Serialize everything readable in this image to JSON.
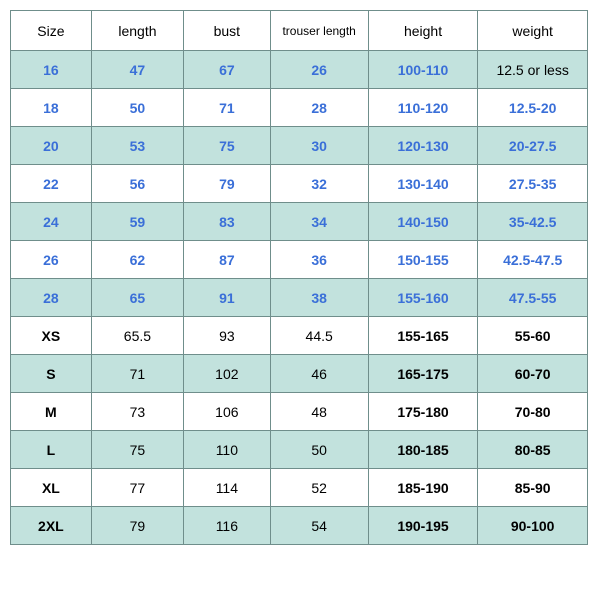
{
  "table": {
    "type": "table",
    "background_teal": "#c2e2dd",
    "background_white": "#ffffff",
    "border_color": "#6f8e8b",
    "blue_text_color": "#3a6fd8",
    "black_text_color": "#000000",
    "header_fontsize": 14,
    "cell_fontsize": 14,
    "columns": [
      {
        "label": "Size",
        "width_pct": 14
      },
      {
        "label": "length",
        "width_pct": 16
      },
      {
        "label": "bust",
        "width_pct": 15
      },
      {
        "label": "trouser length",
        "width_pct": 17,
        "small": true
      },
      {
        "label": "height",
        "width_pct": 19
      },
      {
        "label": "weight",
        "width_pct": 19
      }
    ],
    "rows": [
      {
        "bg": "teal",
        "cells": [
          {
            "v": "16",
            "style": "blue"
          },
          {
            "v": "47",
            "style": "blue"
          },
          {
            "v": "67",
            "style": "blue"
          },
          {
            "v": "26",
            "style": "blue"
          },
          {
            "v": "100-110",
            "style": "blue"
          },
          {
            "v": "12.5 or less",
            "style": "black-plain"
          }
        ]
      },
      {
        "bg": "white",
        "cells": [
          {
            "v": "18",
            "style": "blue"
          },
          {
            "v": "50",
            "style": "blue"
          },
          {
            "v": "71",
            "style": "blue"
          },
          {
            "v": "28",
            "style": "blue"
          },
          {
            "v": "110-120",
            "style": "blue"
          },
          {
            "v": "12.5-20",
            "style": "blue"
          }
        ]
      },
      {
        "bg": "teal",
        "cells": [
          {
            "v": "20",
            "style": "blue"
          },
          {
            "v": "53",
            "style": "blue"
          },
          {
            "v": "75",
            "style": "blue"
          },
          {
            "v": "30",
            "style": "blue"
          },
          {
            "v": "120-130",
            "style": "blue"
          },
          {
            "v": "20-27.5",
            "style": "blue"
          }
        ]
      },
      {
        "bg": "white",
        "cells": [
          {
            "v": "22",
            "style": "blue"
          },
          {
            "v": "56",
            "style": "blue"
          },
          {
            "v": "79",
            "style": "blue"
          },
          {
            "v": "32",
            "style": "blue"
          },
          {
            "v": "130-140",
            "style": "blue"
          },
          {
            "v": "27.5-35",
            "style": "blue"
          }
        ]
      },
      {
        "bg": "teal",
        "cells": [
          {
            "v": "24",
            "style": "blue"
          },
          {
            "v": "59",
            "style": "blue"
          },
          {
            "v": "83",
            "style": "blue"
          },
          {
            "v": "34",
            "style": "blue"
          },
          {
            "v": "140-150",
            "style": "blue"
          },
          {
            "v": "35-42.5",
            "style": "blue"
          }
        ]
      },
      {
        "bg": "white",
        "cells": [
          {
            "v": "26",
            "style": "blue"
          },
          {
            "v": "62",
            "style": "blue"
          },
          {
            "v": "87",
            "style": "blue"
          },
          {
            "v": "36",
            "style": "blue"
          },
          {
            "v": "150-155",
            "style": "blue"
          },
          {
            "v": "42.5-47.5",
            "style": "blue"
          }
        ]
      },
      {
        "bg": "teal",
        "cells": [
          {
            "v": "28",
            "style": "blue"
          },
          {
            "v": "65",
            "style": "blue"
          },
          {
            "v": "91",
            "style": "blue"
          },
          {
            "v": "38",
            "style": "blue"
          },
          {
            "v": "155-160",
            "style": "blue"
          },
          {
            "v": "47.5-55",
            "style": "blue"
          }
        ]
      },
      {
        "bg": "white",
        "cells": [
          {
            "v": "XS",
            "style": "black-bold"
          },
          {
            "v": "65.5",
            "style": "black-plain"
          },
          {
            "v": "93",
            "style": "black-plain"
          },
          {
            "v": "44.5",
            "style": "black-plain"
          },
          {
            "v": "155-165",
            "style": "black-bold"
          },
          {
            "v": "55-60",
            "style": "black-bold"
          }
        ]
      },
      {
        "bg": "teal",
        "cells": [
          {
            "v": "S",
            "style": "black-bold"
          },
          {
            "v": "71",
            "style": "black-plain"
          },
          {
            "v": "102",
            "style": "black-plain"
          },
          {
            "v": "46",
            "style": "black-plain"
          },
          {
            "v": "165-175",
            "style": "black-bold"
          },
          {
            "v": "60-70",
            "style": "black-bold"
          }
        ]
      },
      {
        "bg": "white",
        "cells": [
          {
            "v": "M",
            "style": "black-bold"
          },
          {
            "v": "73",
            "style": "black-plain"
          },
          {
            "v": "106",
            "style": "black-plain"
          },
          {
            "v": "48",
            "style": "black-plain"
          },
          {
            "v": "175-180",
            "style": "black-bold"
          },
          {
            "v": "70-80",
            "style": "black-bold"
          }
        ]
      },
      {
        "bg": "teal",
        "cells": [
          {
            "v": "L",
            "style": "black-bold"
          },
          {
            "v": "75",
            "style": "black-plain"
          },
          {
            "v": "110",
            "style": "black-plain"
          },
          {
            "v": "50",
            "style": "black-plain"
          },
          {
            "v": "180-185",
            "style": "black-bold"
          },
          {
            "v": "80-85",
            "style": "black-bold"
          }
        ]
      },
      {
        "bg": "white",
        "cells": [
          {
            "v": "XL",
            "style": "black-bold"
          },
          {
            "v": "77",
            "style": "black-plain"
          },
          {
            "v": "114",
            "style": "black-plain"
          },
          {
            "v": "52",
            "style": "black-plain"
          },
          {
            "v": "185-190",
            "style": "black-bold"
          },
          {
            "v": "85-90",
            "style": "black-bold"
          }
        ]
      },
      {
        "bg": "teal",
        "cells": [
          {
            "v": "2XL",
            "style": "black-bold"
          },
          {
            "v": "79",
            "style": "black-plain"
          },
          {
            "v": "116",
            "style": "black-plain"
          },
          {
            "v": "54",
            "style": "black-plain"
          },
          {
            "v": "190-195",
            "style": "black-bold"
          },
          {
            "v": "90-100",
            "style": "black-bold"
          }
        ]
      }
    ]
  }
}
